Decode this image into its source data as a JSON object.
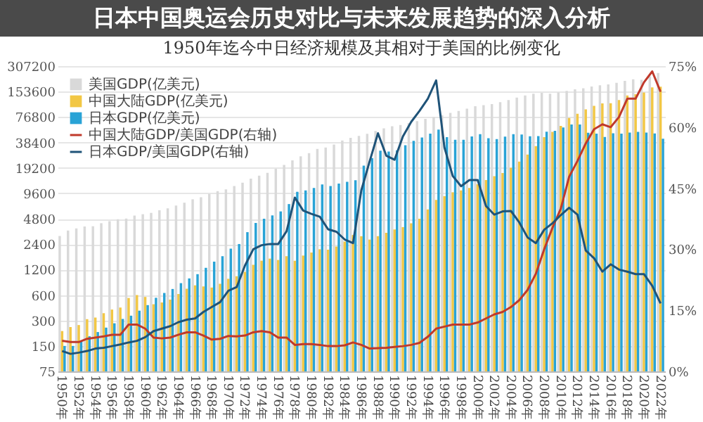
{
  "chart_data": {
    "type": "bar",
    "title": "1950年迄今中日经济规模及其相对于美国的比例变化",
    "annotations": [
      "日本中国奥运会历史对比与未来发展趋势的深入分析"
    ],
    "categories": [
      "1950年",
      null,
      "1952年",
      null,
      "1954年",
      null,
      "1956年",
      null,
      "1958年",
      null,
      "1960年",
      null,
      "1962年",
      null,
      "1964年",
      null,
      "1966年",
      null,
      "1968年",
      null,
      "1970年",
      null,
      "1972年",
      null,
      "1974年",
      null,
      "1976年",
      null,
      "1978年",
      null,
      "1980年",
      null,
      "1982年",
      null,
      "1984年",
      null,
      "1986年",
      null,
      "1988年",
      null,
      "1990年",
      null,
      "1992年",
      null,
      "1994年",
      null,
      "1996年",
      null,
      "1998年",
      null,
      "2000年",
      null,
      "2002年",
      null,
      "2004年",
      null,
      "2006年",
      null,
      "2008年",
      null,
      "2010年",
      null,
      "2012年",
      null,
      "2014年",
      null,
      "2016年",
      null,
      "2018年",
      null,
      "2020年",
      null,
      "2022年"
    ],
    "series": [
      {
        "name": "美国GDP(亿美元)",
        "color": "#d9d9d9",
        "values": [
          3000,
          3480,
          3680,
          3890,
          3910,
          4250,
          4490,
          4740,
          4820,
          5220,
          5430,
          5630,
          6050,
          6380,
          6860,
          7430,
          8150,
          8620,
          9430,
          10200,
          10700,
          11700,
          12800,
          14300,
          15500,
          16800,
          18700,
          20800,
          23500,
          26300,
          28600,
          32100,
          33400,
          36300,
          40400,
          43400,
          45800,
          48600,
          52400,
          56400,
          59600,
          61600,
          65200,
          68600,
          72900,
          76400,
          80700,
          85800,
          90600,
          96300,
          103000,
          106000,
          109000,
          115000,
          122000,
          130000,
          138000,
          145000,
          148000,
          145000,
          150000,
          156000,
          163000,
          168000,
          176000,
          182000,
          187000,
          195000,
          205000,
          214000,
          211000,
          233000,
          255000
        ]
      },
      {
        "name": "中国大陆GDP(亿美元)",
        "color": "#f2c744",
        "values": [
          225,
          251,
          265,
          311,
          325,
          366,
          404,
          427,
          554,
          600,
          570,
          467,
          490,
          530,
          617,
          713,
          782,
          759,
          736,
          815,
          934,
          1000,
          1130,
          1370,
          1530,
          1620,
          1560,
          1730,
          1530,
          1760,
          1910,
          2090,
          2070,
          2250,
          2580,
          3080,
          2980,
          2720,
          2990,
          3270,
          3580,
          3820,
          4240,
          4800,
          6190,
          8020,
          8880,
          9870,
          10400,
          11100,
          12300,
          13800,
          15300,
          16700,
          19300,
          22800,
          27600,
          34700,
          44300,
          51100,
          60200,
          74600,
          84000,
          94300,
          104000,
          111000,
          112000,
          122000,
          138000,
          143000,
          150000,
          172000,
          175000
        ]
      },
      {
        "name": "日本GDP(亿美元)",
        "color": "#29a3d6",
        "values": [
          150,
          150,
          169,
          195,
          219,
          247,
          278,
          313,
          342,
          392,
          456,
          557,
          635,
          708,
          830,
          944,
          1060,
          1260,
          1490,
          1730,
          2130,
          2410,
          3330,
          4280,
          4790,
          5270,
          5860,
          7160,
          10000,
          10400,
          11100,
          12200,
          11700,
          12500,
          13100,
          13700,
          20400,
          25100,
          30600,
          29900,
          31000,
          35500,
          40000,
          43900,
          48800,
          54600,
          44400,
          41200,
          41200,
          45300,
          48200,
          43000,
          42100,
          45000,
          48100,
          47700,
          45500,
          45600,
          51400,
          52700,
          57800,
          62700,
          62600,
          50000,
          48800,
          44600,
          49200,
          48700,
          50300,
          51100,
          50300,
          49000,
          42500
        ]
      },
      {
        "name": "中国大陆GDP/美国GDP(右轴)",
        "type": "line",
        "axis": "y2",
        "color": "#c0392b",
        "values": [
          7.5,
          7.2,
          7.2,
          8.0,
          8.3,
          8.6,
          9.0,
          9.0,
          11.5,
          11.5,
          10.5,
          8.3,
          8.1,
          8.3,
          9.0,
          9.6,
          9.6,
          8.8,
          7.8,
          8.0,
          8.7,
          8.6,
          8.8,
          9.6,
          9.9,
          9.6,
          8.3,
          8.3,
          6.5,
          6.7,
          6.7,
          6.5,
          6.2,
          6.2,
          6.4,
          7.1,
          6.5,
          5.6,
          5.7,
          5.8,
          6.0,
          6.2,
          6.5,
          7.0,
          8.5,
          10.5,
          11.0,
          11.5,
          11.5,
          11.5,
          12.0,
          13.0,
          14.0,
          14.6,
          15.8,
          17.5,
          20.0,
          24.0,
          30.0,
          35.3,
          40.0,
          47.8,
          51.7,
          56.0,
          59.5,
          60.7,
          60.0,
          62.5,
          67.0,
          67.0,
          71.0,
          73.7,
          68.7
        ]
      },
      {
        "name": "日本GDP/美国GDP(右轴)",
        "type": "line",
        "axis": "y2",
        "color": "#1f5378",
        "values": [
          5.0,
          4.3,
          4.6,
          5.0,
          5.6,
          5.8,
          6.2,
          6.6,
          7.1,
          7.5,
          8.4,
          9.9,
          10.5,
          11.1,
          12.1,
          12.7,
          13.0,
          14.6,
          15.8,
          17.0,
          19.8,
          20.7,
          26.0,
          30.0,
          31.0,
          31.3,
          31.3,
          34.4,
          42.7,
          39.5,
          38.7,
          38.0,
          34.9,
          34.3,
          32.4,
          31.5,
          44.5,
          51.6,
          58.5,
          53.0,
          52.0,
          57.7,
          61.3,
          64.0,
          67.0,
          71.5,
          55.0,
          48.0,
          45.5,
          47.0,
          47.0,
          40.6,
          38.5,
          39.3,
          39.4,
          36.6,
          32.9,
          31.5,
          34.8,
          36.4,
          38.4,
          40.2,
          38.5,
          29.7,
          27.8,
          24.5,
          26.3,
          25.0,
          24.5,
          23.9,
          23.9,
          21.0,
          16.7
        ]
      }
    ],
    "log": true,
    "ylim": [
      75,
      307200
    ],
    "yticks": [
      75,
      150,
      300,
      600,
      1200,
      2400,
      4800,
      9600,
      19200,
      38400,
      76800,
      153600,
      307200
    ],
    "y2lim": [
      0,
      75
    ],
    "y2ticks": [
      {
        "value": 0,
        "label": "0%"
      },
      {
        "value": 15,
        "label": "15%"
      },
      {
        "value": 30,
        "label": "30%"
      },
      {
        "value": 45,
        "label": "45%"
      },
      {
        "value": 60,
        "label": "60%"
      },
      {
        "value": 75,
        "label": "75%"
      }
    ],
    "grid": "y",
    "legend": "top left"
  }
}
